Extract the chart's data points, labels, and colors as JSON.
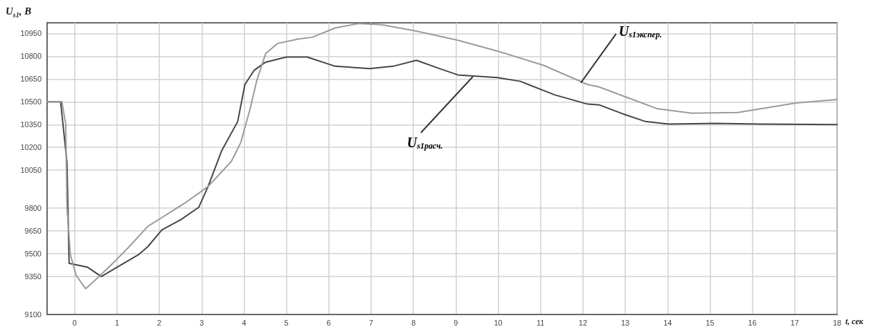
{
  "chart_data": {
    "type": "line",
    "xlabel": "t, сек",
    "ylabel": "U$_{s1}$, В",
    "xlim": [
      -0.65,
      18
    ],
    "xticks": [
      0,
      1,
      2,
      3,
      4,
      5,
      6,
      7,
      8,
      9,
      10,
      11,
      12,
      13,
      14,
      15,
      16,
      17,
      18
    ],
    "ylim": [
      9100,
      11020
    ],
    "yticks": [
      9100,
      9350,
      9500,
      9650,
      9800,
      10050,
      10200,
      10350,
      10500,
      10650,
      10800,
      10950
    ],
    "grid": true,
    "marker": "none",
    "series": [
      {
        "color": "#444444",
        "x": [
          -0.65,
          -0.33,
          -0.18,
          -0.13,
          0.3,
          0.63,
          0.96,
          1.51,
          1.73,
          2.06,
          2.5,
          2.93,
          3.15,
          3.47,
          3.85,
          4.02,
          4.24,
          4.51,
          5.0,
          5.49,
          6.15,
          6.97,
          7.52,
          8.07,
          8.61,
          9.05,
          9.98,
          10.52,
          11.34,
          12.11,
          12.38,
          12.93,
          13.48,
          14.02,
          15.1,
          16.2,
          18
        ],
        "values": [
          10500,
          10500,
          10100,
          9437,
          9412,
          9350,
          9404,
          9494,
          9547,
          9657,
          9723,
          9805,
          9942,
          10177,
          10370,
          10614,
          10708,
          10761,
          10795,
          10795,
          10734,
          10719,
          10734,
          10773,
          10719,
          10677,
          10659,
          10635,
          10545,
          10485,
          10480,
          10422,
          10370,
          10353,
          10358,
          10353,
          10350
        ]
      },
      {
        "color": "#9a9a9a",
        "x": [
          -0.65,
          -0.3,
          -0.21,
          -0.18,
          -0.1,
          0.04,
          0.26,
          0.53,
          0.96,
          1.29,
          1.73,
          2.06,
          2.61,
          3.15,
          3.7,
          3.92,
          4.14,
          4.3,
          4.51,
          4.79,
          5.28,
          5.61,
          6.15,
          6.7,
          7.25,
          8.07,
          9.05,
          10.03,
          11.07,
          12.11,
          12.38,
          13.03,
          13.75,
          14.57,
          15.66,
          16.21,
          17.03,
          18
        ],
        "values": [
          10500,
          10500,
          10353,
          9805,
          9494,
          9355,
          9270,
          9338,
          9453,
          9547,
          9681,
          9738,
          9835,
          9942,
          10108,
          10230,
          10450,
          10640,
          10818,
          10884,
          10913,
          10925,
          10986,
          11015,
          11007,
          10965,
          10905,
          10830,
          10740,
          10614,
          10598,
          10530,
          10455,
          10425,
          10430,
          10455,
          10492,
          10515
        ]
      }
    ],
    "annotations": [
      {
        "text": "U$_{s1расч.}$",
        "x": 9.4,
        "y": 10665
      },
      {
        "text": "U$_{s1экспер.}$",
        "x": 11.95,
        "y": 10625
      }
    ]
  }
}
